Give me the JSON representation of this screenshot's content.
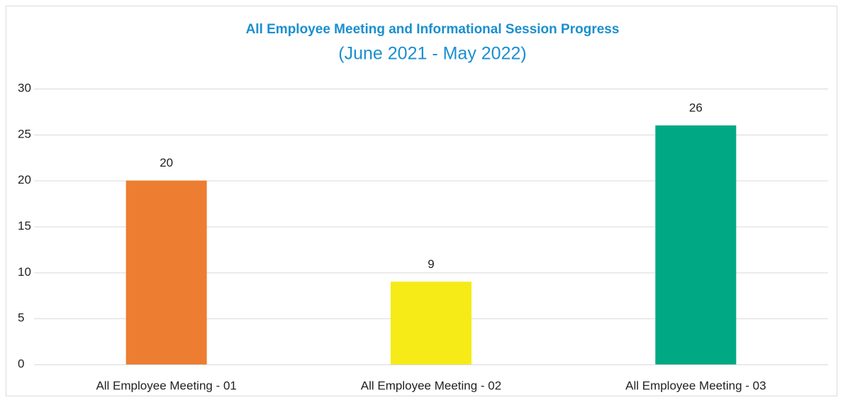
{
  "chart_data": {
    "type": "bar",
    "title": "All Employee Meeting and Informational Session Progress",
    "subtitle": "(June 2021 - May 2022)",
    "categories": [
      "All Employee Meeting - 01",
      "All Employee Meeting - 02",
      "All Employee Meeting - 03"
    ],
    "values": [
      20,
      9,
      26
    ],
    "colors": [
      "#ed7d31",
      "#f6eb16",
      "#00a884"
    ],
    "ylim": [
      0,
      30
    ],
    "yticks": [
      0,
      5,
      10,
      15,
      20,
      25,
      30
    ],
    "grid": true
  }
}
